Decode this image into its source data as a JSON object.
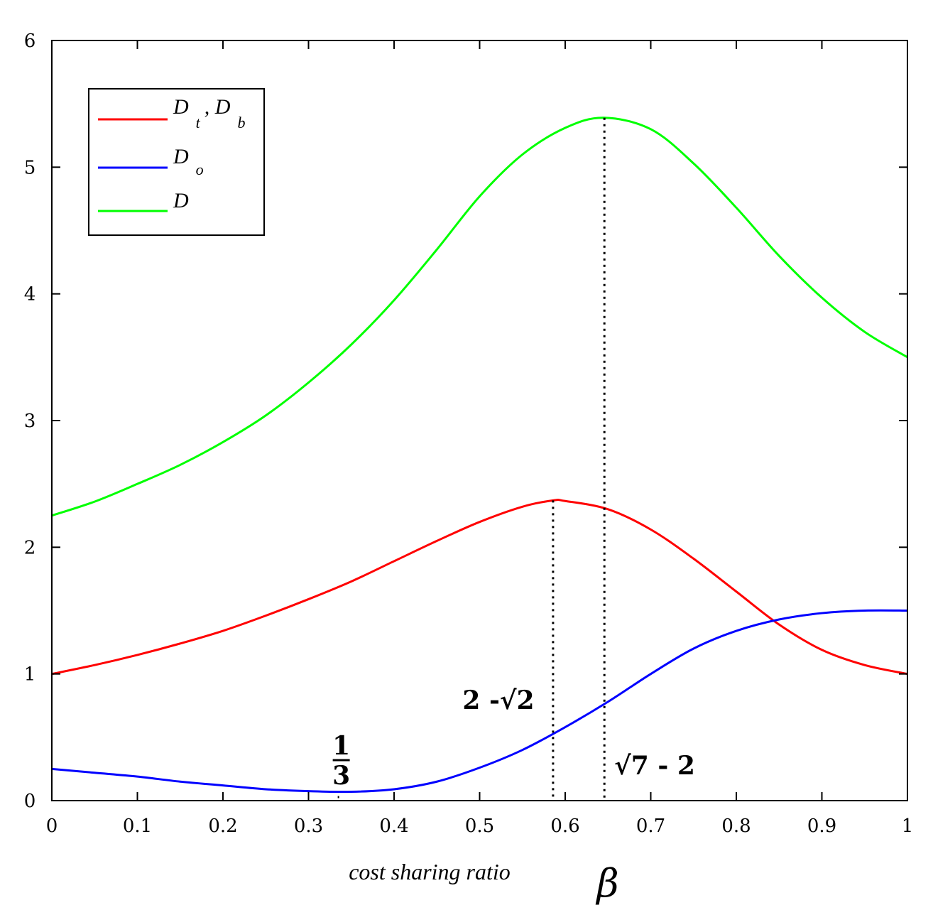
{
  "chart_data": {
    "type": "line",
    "title": "",
    "xlabel": "cost sharing ratio",
    "xlabel_symbol": "β",
    "ylabel": "",
    "xlim": [
      0,
      1
    ],
    "ylim": [
      0,
      6
    ],
    "xticks": [
      "0",
      "0.1",
      "0.2",
      "0.3",
      "0.4",
      "0.5",
      "0.6",
      "0.7",
      "0.8",
      "0.9",
      "1"
    ],
    "yticks": [
      "0",
      "1",
      "2",
      "3",
      "4",
      "5",
      "6"
    ],
    "grid": false,
    "legend_placement": "top-left",
    "series": [
      {
        "name": "D_t , D_b",
        "legend_main": "D",
        "legend_sub": "t",
        "legend_main2": ", D",
        "legend_sub2": "b",
        "color": "#ff0000",
        "x": [
          0,
          0.05,
          0.1,
          0.15,
          0.2,
          0.25,
          0.3,
          0.35,
          0.4,
          0.45,
          0.5,
          0.55,
          0.586,
          0.6,
          0.65,
          0.7,
          0.75,
          0.8,
          0.85,
          0.9,
          0.95,
          1
        ],
        "values": [
          1.0,
          1.07,
          1.15,
          1.24,
          1.34,
          1.46,
          1.59,
          1.73,
          1.89,
          2.05,
          2.2,
          2.32,
          2.37,
          2.365,
          2.3,
          2.14,
          1.91,
          1.65,
          1.39,
          1.19,
          1.07,
          1.0
        ]
      },
      {
        "name": "D_o",
        "legend_main": "D",
        "legend_sub": "o",
        "color": "#0000ff",
        "x": [
          0,
          0.05,
          0.1,
          0.15,
          0.2,
          0.25,
          0.3,
          0.35,
          0.4,
          0.45,
          0.5,
          0.55,
          0.6,
          0.65,
          0.7,
          0.75,
          0.8,
          0.85,
          0.9,
          0.95,
          1
        ],
        "values": [
          0.25,
          0.22,
          0.19,
          0.15,
          0.12,
          0.09,
          0.075,
          0.07,
          0.09,
          0.15,
          0.26,
          0.4,
          0.58,
          0.78,
          1.0,
          1.2,
          1.34,
          1.43,
          1.48,
          1.5,
          1.5
        ]
      },
      {
        "name": "D",
        "legend_main": "D",
        "legend_sub": "",
        "color": "#00ff00",
        "x": [
          0,
          0.05,
          0.1,
          0.15,
          0.2,
          0.25,
          0.3,
          0.35,
          0.4,
          0.45,
          0.5,
          0.55,
          0.6,
          0.645,
          0.7,
          0.75,
          0.8,
          0.85,
          0.9,
          0.95,
          1
        ],
        "values": [
          2.25,
          2.36,
          2.5,
          2.65,
          2.83,
          3.04,
          3.3,
          3.6,
          3.95,
          4.35,
          4.77,
          5.1,
          5.31,
          5.39,
          5.3,
          5.03,
          4.68,
          4.3,
          3.97,
          3.7,
          3.5
        ]
      }
    ],
    "annotations": [
      {
        "text_main": "1",
        "text_den": "3",
        "x": 0.3333,
        "y": 0.07,
        "dotted_to_axis": false
      },
      {
        "text": "2 -√2",
        "x": 0.5858,
        "y": 2.37,
        "dotted_to_axis": true
      },
      {
        "text": "√7 - 2",
        "x": 0.6458,
        "y": 5.39,
        "dotted_to_axis": true
      }
    ]
  }
}
